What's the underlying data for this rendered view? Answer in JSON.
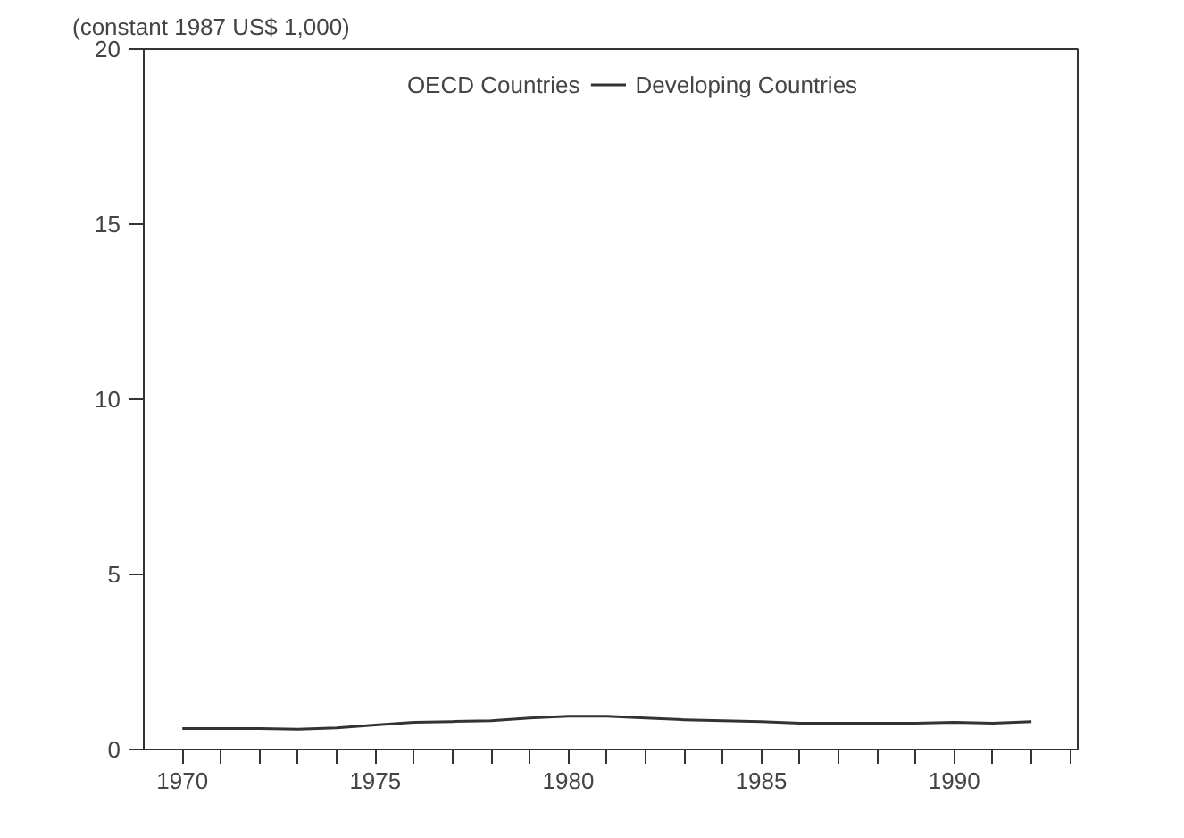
{
  "chart_data": {
    "type": "line",
    "title": "(constant 1987 US$ 1,000)",
    "x": [
      1970,
      1971,
      1972,
      1973,
      1974,
      1975,
      1976,
      1977,
      1978,
      1979,
      1980,
      1981,
      1982,
      1983,
      1984,
      1985,
      1986,
      1987,
      1988,
      1989,
      1990,
      1991,
      1992
    ],
    "series": [
      {
        "name": "OECD Countries",
        "values": [
          null,
          null,
          null,
          null,
          null,
          null,
          null,
          null,
          null,
          null,
          null,
          null,
          null,
          null,
          null,
          null,
          null,
          null,
          null,
          null,
          null,
          null,
          null
        ]
      },
      {
        "name": "Developing Countries",
        "color": "#333333",
        "values": [
          0.6,
          0.6,
          0.6,
          0.58,
          0.62,
          0.7,
          0.78,
          0.8,
          0.82,
          0.9,
          0.95,
          0.95,
          0.9,
          0.85,
          0.82,
          0.8,
          0.75,
          0.75,
          0.75,
          0.75,
          0.78,
          0.75,
          0.8
        ]
      }
    ],
    "xlim": [
      1969,
      1993.2
    ],
    "ylim": [
      0,
      20
    ],
    "xticks": [
      1970,
      {
        "value": 1971,
        "label": null
      },
      {
        "value": 1972,
        "label": null
      },
      {
        "value": 1973,
        "label": null
      },
      {
        "value": 1974,
        "label": null
      },
      1975,
      {
        "value": 1976,
        "label": null
      },
      {
        "value": 1977,
        "label": null
      },
      {
        "value": 1978,
        "label": null
      },
      {
        "value": 1979,
        "label": null
      },
      1980,
      {
        "value": 1981,
        "label": null
      },
      {
        "value": 1982,
        "label": null
      },
      {
        "value": 1983,
        "label": null
      },
      {
        "value": 1984,
        "label": null
      },
      1985,
      {
        "value": 1986,
        "label": null
      },
      {
        "value": 1987,
        "label": null
      },
      {
        "value": 1988,
        "label": null
      },
      {
        "value": 1989,
        "label": null
      },
      1990,
      {
        "value": 1991,
        "label": null
      },
      {
        "value": 1992,
        "label": null
      },
      {
        "value": 1993,
        "label": null
      }
    ],
    "yticks": [
      0,
      5,
      10,
      15,
      20
    ],
    "legend": "top",
    "grid": false,
    "line_style": "solid"
  }
}
